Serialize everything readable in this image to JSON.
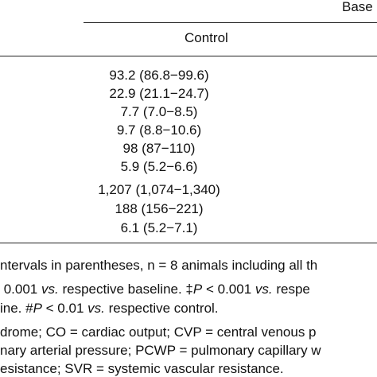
{
  "header": {
    "group": "Base",
    "column": "Control"
  },
  "table": {
    "rows": [
      "93.2 (86.8−99.6)",
      "22.9 (21.1−24.7)",
      "7.7 (7.0−8.5)",
      "9.7 (8.8−10.6)",
      "98 (87−110)",
      "5.9 (5.2−6.6)",
      "1,207 (1,074−1,340)",
      "188 (156−221)",
      "6.1 (5.2−7.1)"
    ]
  },
  "footnotes": {
    "lines": [
      [
        "ntervals in parentheses, n = 8 animals including all th"
      ],
      [
        " 0.001 ",
        "vs.",
        " respective baseline. ‡",
        "P",
        " < 0.001 ",
        "vs.",
        " respe"
      ],
      [
        "ine. #",
        "P",
        " < 0.01 ",
        "vs.",
        " respective control."
      ],
      [
        "drome; CO = cardiac output; CVP = central venous p"
      ],
      [
        "nary arterial pressure; PCWP = pulmonary capillary w"
      ],
      [
        "esistance; SVR = systemic vascular resistance."
      ]
    ]
  }
}
